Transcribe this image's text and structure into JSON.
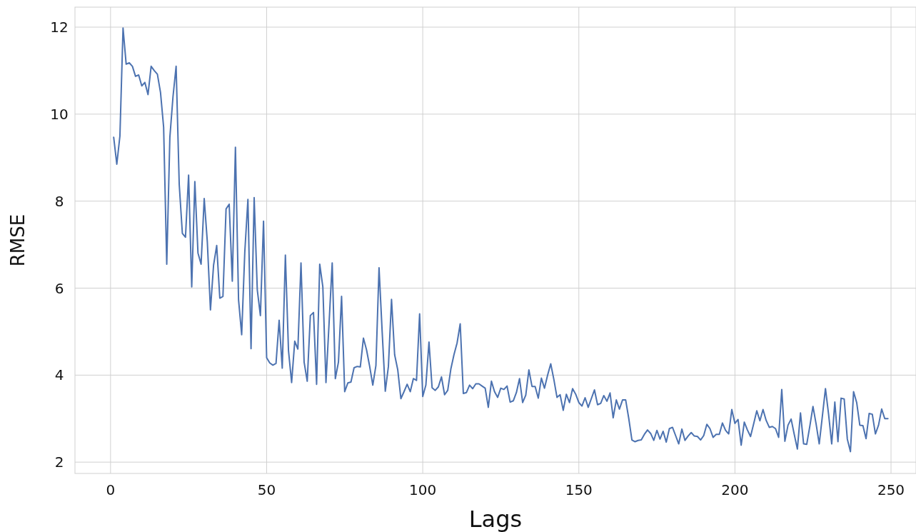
{
  "chart_data": {
    "type": "line",
    "xlabel": "Lags",
    "ylabel": "RMSE",
    "xlim": [
      -11.4,
      258
    ],
    "ylim": [
      1.74,
      12.46
    ],
    "xticks": [
      0,
      50,
      100,
      150,
      200,
      250
    ],
    "yticks": [
      2,
      4,
      6,
      8,
      10,
      12
    ],
    "grid": true,
    "series": [
      {
        "color": "#4c72b0",
        "x": [
          1,
          2,
          3,
          4,
          5,
          6,
          7,
          8,
          9,
          10,
          11,
          12,
          13,
          14,
          15,
          16,
          17,
          18,
          19,
          20,
          21,
          22,
          23,
          24,
          25,
          26,
          27,
          28,
          29,
          30,
          31,
          32,
          33,
          34,
          35,
          36,
          37,
          38,
          39,
          40,
          41,
          42,
          43,
          44,
          45,
          46,
          47,
          48,
          49,
          50,
          51,
          52,
          53,
          54,
          55,
          56,
          57,
          58,
          59,
          60,
          61,
          62,
          63,
          64,
          65,
          66,
          67,
          68,
          69,
          70,
          71,
          72,
          73,
          74,
          75,
          76,
          77,
          78,
          79,
          80,
          81,
          82,
          83,
          84,
          85,
          86,
          87,
          88,
          89,
          90,
          91,
          92,
          93,
          94,
          95,
          96,
          97,
          98,
          99,
          100,
          101,
          102,
          103,
          104,
          105,
          106,
          107,
          108,
          109,
          110,
          111,
          112,
          113,
          114,
          115,
          116,
          117,
          118,
          119,
          120,
          121,
          122,
          123,
          124,
          125,
          126,
          127,
          128,
          129,
          130,
          131,
          132,
          133,
          134,
          135,
          136,
          137,
          138,
          139,
          140,
          141,
          142,
          143,
          144,
          145,
          146,
          147,
          148,
          149,
          150,
          151,
          152,
          153,
          154,
          155,
          156,
          157,
          158,
          159,
          160,
          161,
          162,
          163,
          164,
          165,
          166,
          167,
          168,
          169,
          170,
          171,
          172,
          173,
          174,
          175,
          176,
          177,
          178,
          179,
          180,
          181,
          182,
          183,
          184,
          185,
          186,
          187,
          188,
          189,
          190,
          191,
          192,
          193,
          194,
          195,
          196,
          197,
          198,
          199,
          200,
          201,
          202,
          203,
          204,
          205,
          206,
          207,
          208,
          209,
          210,
          211,
          212,
          213,
          214,
          215,
          216,
          217,
          218,
          219,
          220,
          221,
          222,
          223,
          224,
          225,
          226,
          227,
          228,
          229,
          230,
          231,
          232,
          233,
          234,
          235,
          236,
          237,
          238,
          239,
          240,
          241,
          242,
          243,
          244,
          245,
          246,
          247,
          248,
          249
        ],
        "values": [
          9.47,
          8.85,
          9.5,
          11.98,
          11.15,
          11.18,
          11.1,
          10.87,
          10.9,
          10.65,
          10.73,
          10.45,
          11.1,
          11.0,
          10.92,
          10.5,
          9.7,
          6.55,
          9.47,
          10.4,
          11.1,
          8.38,
          7.26,
          7.17,
          8.6,
          6.03,
          8.45,
          6.81,
          6.55,
          8.06,
          7.06,
          5.5,
          6.53,
          6.98,
          5.77,
          5.81,
          7.82,
          7.93,
          6.16,
          9.24,
          5.73,
          4.93,
          6.83,
          8.04,
          4.61,
          8.08,
          5.96,
          5.37,
          7.54,
          4.4,
          4.28,
          4.23,
          4.27,
          5.26,
          4.16,
          6.76,
          4.56,
          3.83,
          4.78,
          4.6,
          6.58,
          4.3,
          3.86,
          5.37,
          5.44,
          3.79,
          6.55,
          6.03,
          3.83,
          5.2,
          6.58,
          3.92,
          4.3,
          5.81,
          3.62,
          3.82,
          3.84,
          4.17,
          4.2,
          4.19,
          4.85,
          4.58,
          4.2,
          3.77,
          4.22,
          6.47,
          5.0,
          3.63,
          4.2,
          5.74,
          4.47,
          4.12,
          3.46,
          3.62,
          3.79,
          3.62,
          3.92,
          3.88,
          5.41,
          3.51,
          3.77,
          4.76,
          3.71,
          3.65,
          3.73,
          3.96,
          3.55,
          3.65,
          4.14,
          4.47,
          4.74,
          5.18,
          3.58,
          3.6,
          3.77,
          3.69,
          3.8,
          3.8,
          3.75,
          3.7,
          3.26,
          3.86,
          3.62,
          3.49,
          3.7,
          3.67,
          3.75,
          3.38,
          3.41,
          3.6,
          3.92,
          3.37,
          3.54,
          4.12,
          3.74,
          3.74,
          3.47,
          3.93,
          3.7,
          4.0,
          4.26,
          3.9,
          3.49,
          3.55,
          3.19,
          3.56,
          3.37,
          3.69,
          3.56,
          3.37,
          3.29,
          3.48,
          3.26,
          3.46,
          3.66,
          3.32,
          3.35,
          3.53,
          3.4,
          3.59,
          3.02,
          3.43,
          3.22,
          3.43,
          3.43,
          3.0,
          2.51,
          2.47,
          2.5,
          2.51,
          2.64,
          2.74,
          2.66,
          2.5,
          2.73,
          2.53,
          2.71,
          2.46,
          2.77,
          2.8,
          2.61,
          2.42,
          2.76,
          2.5,
          2.6,
          2.68,
          2.6,
          2.59,
          2.51,
          2.61,
          2.87,
          2.77,
          2.57,
          2.64,
          2.64,
          2.9,
          2.73,
          2.65,
          3.21,
          2.89,
          2.98,
          2.39,
          2.92,
          2.74,
          2.59,
          2.88,
          3.18,
          2.95,
          3.21,
          2.96,
          2.8,
          2.82,
          2.77,
          2.57,
          3.67,
          2.48,
          2.85,
          2.99,
          2.64,
          2.3,
          3.13,
          2.42,
          2.41,
          2.83,
          3.28,
          2.88,
          2.42,
          3.05,
          3.69,
          3.1,
          2.42,
          3.38,
          2.47,
          3.47,
          3.45,
          2.53,
          2.24,
          3.62,
          3.37,
          2.85,
          2.84,
          2.54,
          3.12,
          3.1,
          2.65,
          2.85,
          3.22,
          3.0,
          3.0
        ]
      }
    ]
  }
}
